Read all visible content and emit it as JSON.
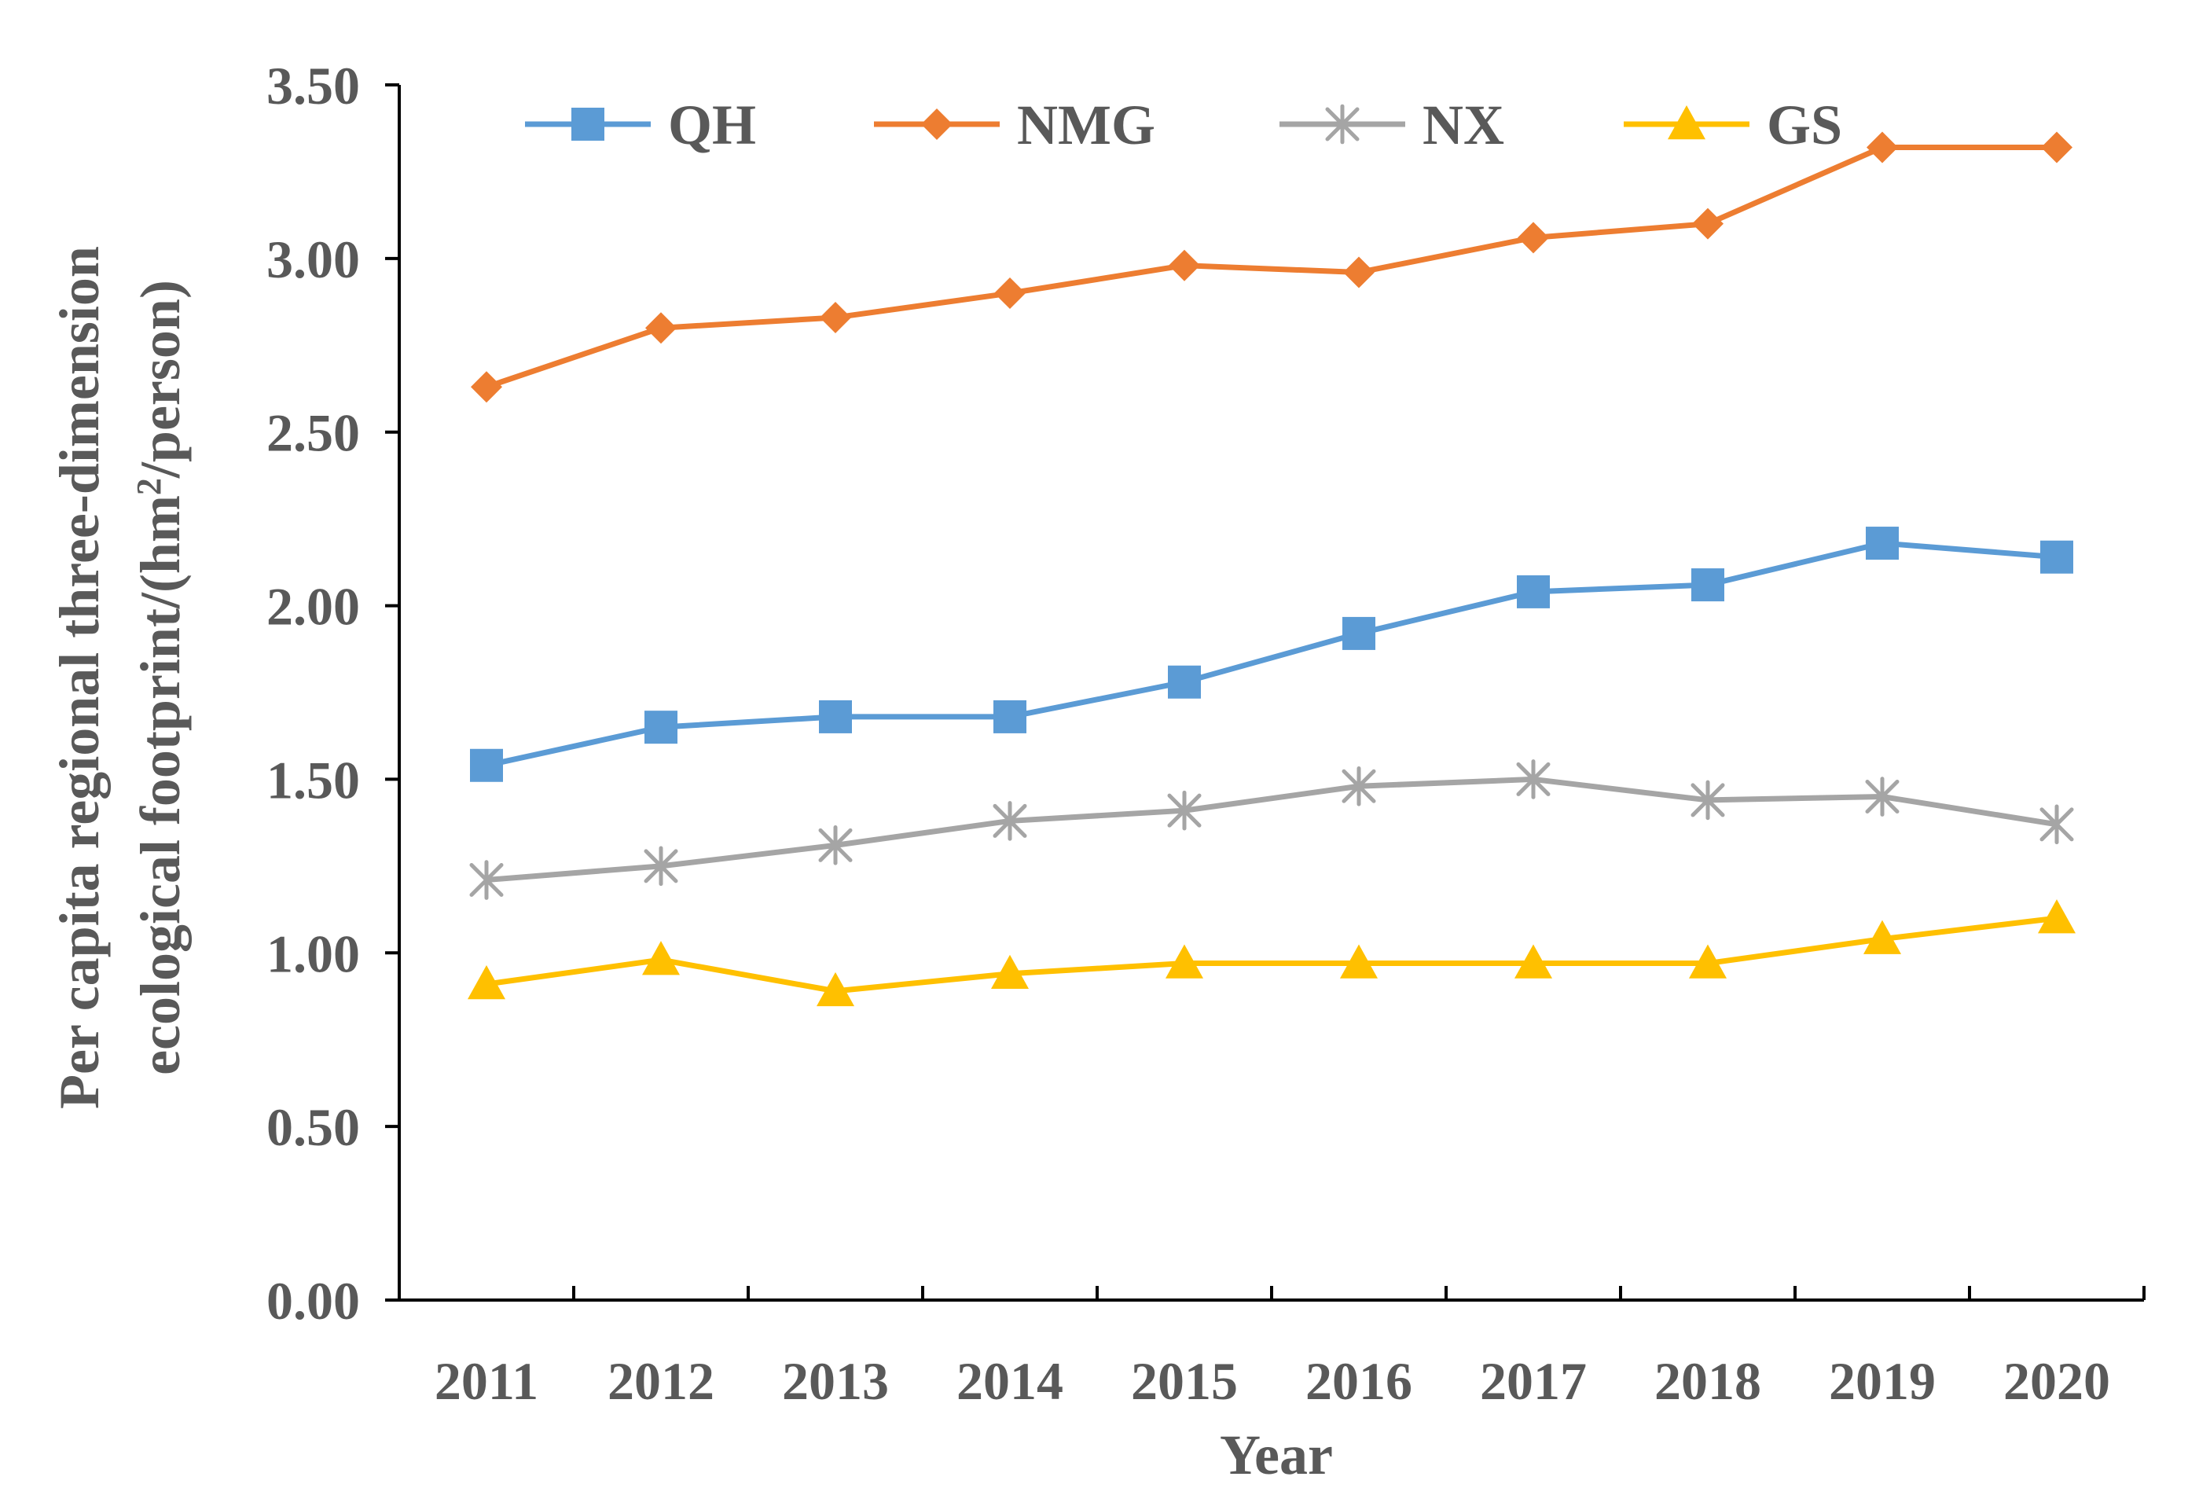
{
  "chart_data": {
    "type": "line",
    "title": "",
    "xlabel": "Year",
    "ylabel_line1": "Per capita regional three-dimension",
    "ylabel_line2_prefix": "ecological footprint/(hm",
    "ylabel_line2_sup": "2",
    "ylabel_line2_suffix": "/person)",
    "ylim": [
      0,
      3.5
    ],
    "yticks": [
      "0.00",
      "0.50",
      "1.00",
      "1.50",
      "2.00",
      "2.50",
      "3.00",
      "3.50"
    ],
    "categories": [
      "2011",
      "2012",
      "2013",
      "2014",
      "2015",
      "2016",
      "2017",
      "2018",
      "2019",
      "2020"
    ],
    "legend_position": "top",
    "grid": false,
    "series": [
      {
        "name": "QH",
        "color": "#5B9BD5",
        "marker": "square",
        "values": [
          1.54,
          1.65,
          1.68,
          1.68,
          1.78,
          1.92,
          2.04,
          2.06,
          2.18,
          2.14
        ]
      },
      {
        "name": "NMG",
        "color": "#ED7D31",
        "marker": "diamond",
        "values": [
          2.63,
          2.8,
          2.83,
          2.9,
          2.98,
          2.96,
          3.06,
          3.1,
          3.32,
          3.32
        ]
      },
      {
        "name": "NX",
        "color": "#A5A5A5",
        "marker": "asterisk",
        "values": [
          1.21,
          1.25,
          1.31,
          1.38,
          1.41,
          1.48,
          1.5,
          1.44,
          1.45,
          1.37
        ]
      },
      {
        "name": "GS",
        "color": "#FFC000",
        "marker": "triangle",
        "values": [
          0.91,
          0.98,
          0.89,
          0.94,
          0.97,
          0.97,
          0.97,
          0.97,
          1.04,
          1.1
        ]
      }
    ]
  }
}
